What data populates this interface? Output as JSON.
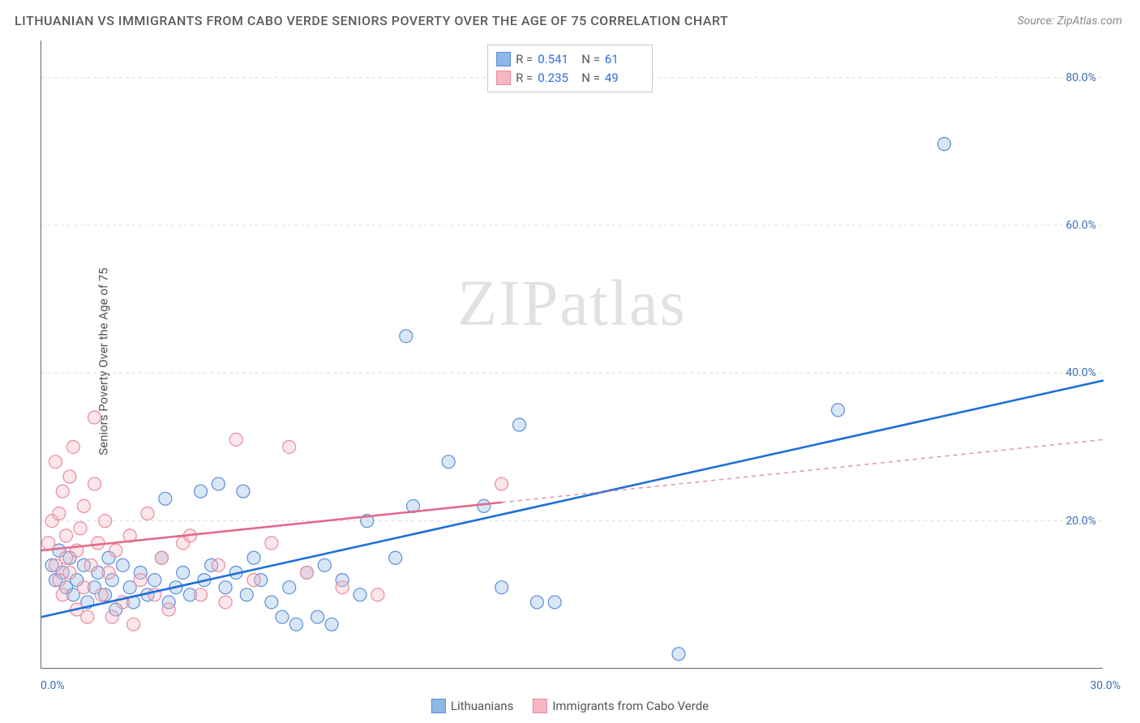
{
  "title": "LITHUANIAN VS IMMIGRANTS FROM CABO VERDE SENIORS POVERTY OVER THE AGE OF 75 CORRELATION CHART",
  "source": "Source: ZipAtlas.com",
  "ylabel": "Seniors Poverty Over the Age of 75",
  "watermark": "ZIPatlas",
  "chart": {
    "type": "scatter",
    "xlim": [
      0,
      30
    ],
    "ylim": [
      0,
      85
    ],
    "background_color": "#ffffff",
    "grid_color": "#dddddd",
    "grid_dash": "4,4",
    "axis_color": "#666666",
    "y_ticks": [
      20,
      40,
      60,
      80
    ],
    "y_tick_labels": [
      "20.0%",
      "40.0%",
      "60.0%",
      "80.0%"
    ],
    "x_tick_labels": {
      "left": "0.0%",
      "right": "30.0%"
    },
    "tick_label_color": "#3b6fb6",
    "marker_radius": 8,
    "marker_stroke_width": 1.2,
    "marker_fill_opacity": 0.35,
    "trend_line_width_solid": 2.6,
    "trend_line_width_dashed": 1.6,
    "dashed_pattern": "5,5"
  },
  "series": [
    {
      "name": "Lithuanians",
      "color_fill": "#8fb7e6",
      "color_stroke": "#5a8fd6",
      "trend_color": "#1f6fd8",
      "stats": {
        "R": "0.541",
        "N": "61"
      },
      "trend": {
        "x1": 0,
        "y1": 7,
        "x2": 30,
        "y2": 39,
        "dashed_from_x": null
      },
      "points": [
        [
          0.3,
          14
        ],
        [
          0.4,
          12
        ],
        [
          0.5,
          16
        ],
        [
          0.6,
          13
        ],
        [
          0.7,
          11
        ],
        [
          0.8,
          15
        ],
        [
          0.9,
          10
        ],
        [
          1.0,
          12
        ],
        [
          1.2,
          14
        ],
        [
          1.3,
          9
        ],
        [
          1.5,
          11
        ],
        [
          1.6,
          13
        ],
        [
          1.8,
          10
        ],
        [
          1.9,
          15
        ],
        [
          2.0,
          12
        ],
        [
          2.1,
          8
        ],
        [
          2.3,
          14
        ],
        [
          2.5,
          11
        ],
        [
          2.6,
          9
        ],
        [
          2.8,
          13
        ],
        [
          3.0,
          10
        ],
        [
          3.2,
          12
        ],
        [
          3.4,
          15
        ],
        [
          3.5,
          23
        ],
        [
          3.6,
          9
        ],
        [
          3.8,
          11
        ],
        [
          4.0,
          13
        ],
        [
          4.2,
          10
        ],
        [
          4.5,
          24
        ],
        [
          4.6,
          12
        ],
        [
          4.8,
          14
        ],
        [
          5.0,
          25
        ],
        [
          5.2,
          11
        ],
        [
          5.5,
          13
        ],
        [
          5.7,
          24
        ],
        [
          5.8,
          10
        ],
        [
          6.0,
          15
        ],
        [
          6.2,
          12
        ],
        [
          6.5,
          9
        ],
        [
          6.8,
          7
        ],
        [
          7.0,
          11
        ],
        [
          7.2,
          6
        ],
        [
          7.5,
          13
        ],
        [
          7.8,
          7
        ],
        [
          8.0,
          14
        ],
        [
          8.2,
          6
        ],
        [
          8.5,
          12
        ],
        [
          9.0,
          10
        ],
        [
          9.2,
          20
        ],
        [
          10.0,
          15
        ],
        [
          10.3,
          45
        ],
        [
          10.5,
          22
        ],
        [
          11.5,
          28
        ],
        [
          12.5,
          22
        ],
        [
          13.0,
          11
        ],
        [
          13.5,
          33
        ],
        [
          14.0,
          9
        ],
        [
          14.5,
          9
        ],
        [
          18.0,
          2
        ],
        [
          22.5,
          35
        ],
        [
          25.5,
          71
        ]
      ]
    },
    {
      "name": "Immigrants from Cabo Verde",
      "color_fill": "#f4b8c4",
      "color_stroke": "#e88aa0",
      "trend_color": "#e26b8a",
      "stats": {
        "R": "0.235",
        "N": "49"
      },
      "trend": {
        "x1": 0,
        "y1": 16,
        "x2": 30,
        "y2": 31,
        "dashed_from_x": 13
      },
      "points": [
        [
          0.2,
          17
        ],
        [
          0.3,
          20
        ],
        [
          0.4,
          14
        ],
        [
          0.4,
          28
        ],
        [
          0.5,
          12
        ],
        [
          0.5,
          21
        ],
        [
          0.6,
          10
        ],
        [
          0.6,
          24
        ],
        [
          0.7,
          18
        ],
        [
          0.7,
          15
        ],
        [
          0.8,
          13
        ],
        [
          0.8,
          26
        ],
        [
          0.9,
          30
        ],
        [
          1.0,
          16
        ],
        [
          1.0,
          8
        ],
        [
          1.1,
          19
        ],
        [
          1.2,
          11
        ],
        [
          1.2,
          22
        ],
        [
          1.3,
          7
        ],
        [
          1.4,
          14
        ],
        [
          1.5,
          25
        ],
        [
          1.5,
          34
        ],
        [
          1.6,
          17
        ],
        [
          1.7,
          10
        ],
        [
          1.8,
          20
        ],
        [
          1.9,
          13
        ],
        [
          2.0,
          7
        ],
        [
          2.1,
          16
        ],
        [
          2.3,
          9
        ],
        [
          2.5,
          18
        ],
        [
          2.6,
          6
        ],
        [
          2.8,
          12
        ],
        [
          3.0,
          21
        ],
        [
          3.2,
          10
        ],
        [
          3.4,
          15
        ],
        [
          3.6,
          8
        ],
        [
          4.0,
          17
        ],
        [
          4.2,
          18
        ],
        [
          4.5,
          10
        ],
        [
          5.0,
          14
        ],
        [
          5.2,
          9
        ],
        [
          5.5,
          31
        ],
        [
          6.0,
          12
        ],
        [
          6.5,
          17
        ],
        [
          7.0,
          30
        ],
        [
          7.5,
          13
        ],
        [
          8.5,
          11
        ],
        [
          9.5,
          10
        ],
        [
          13.0,
          25
        ]
      ]
    }
  ],
  "stats_box": {
    "R_label": "R =",
    "N_label": "N ="
  },
  "legend": {
    "series1": "Lithuanians",
    "series2": "Immigrants from Cabo Verde"
  }
}
